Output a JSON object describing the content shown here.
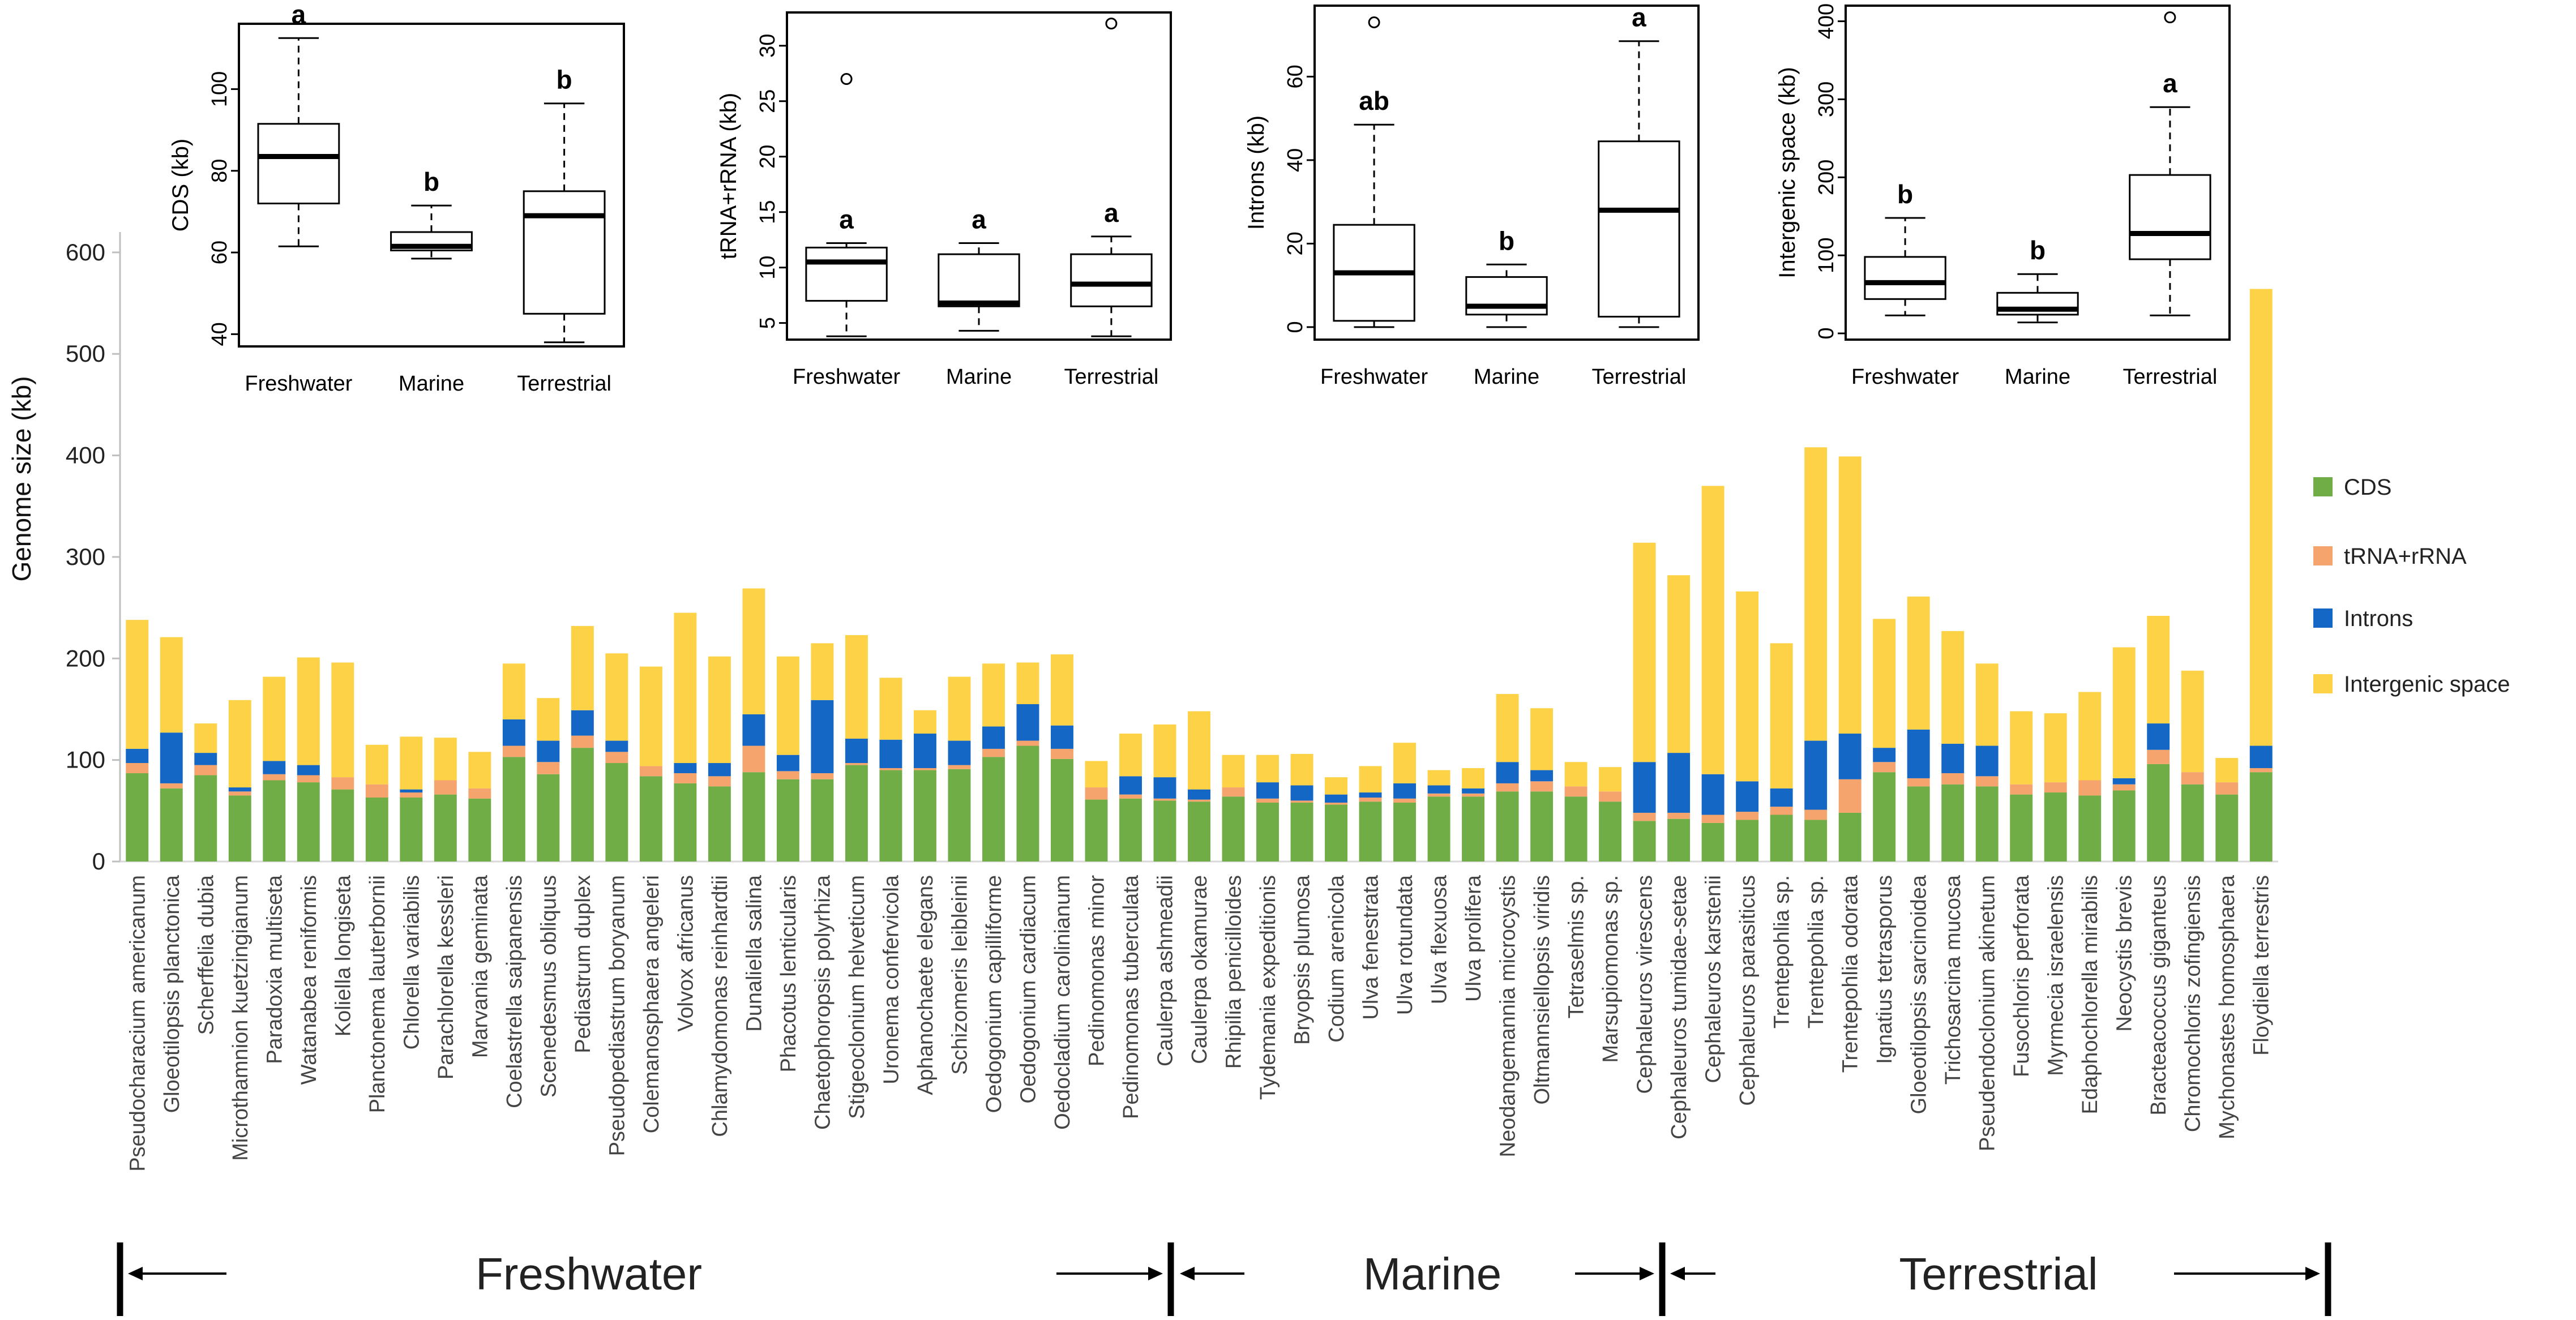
{
  "chart_data": [
    {
      "type": "bar",
      "stacked": true,
      "ylabel": "Genome size (kb)",
      "ylim": [
        0,
        620
      ],
      "yticks": [
        0,
        100,
        200,
        300,
        400,
        500,
        600
      ],
      "legend_position": "right",
      "colors": {
        "CDS": "#70AD47",
        "tRNA+rRNA": "#F4A46C",
        "Introns": "#1467C4",
        "Intergenic space": "#FDD247"
      },
      "categories": [
        "Pseudocharacium americanum",
        "Gloeotilopsis planctonica",
        "Scherffelia dubia",
        "Microthamnion kuetzingianum",
        "Paradoxia multiseta",
        "Watanabea reniformis",
        "Koliella longiseta",
        "Planctonema lauterbornii",
        "Chlorella variabilis",
        "Parachlorella kessleri",
        "Marvania geminata",
        "Coelastrella saipanensis",
        "Scenedesmus obliquus",
        "Pediastrum duplex",
        "Pseudopediastrum boryanum",
        "Colemanosphaera angeleri",
        "Volvox africanus",
        "Chlamydomonas reinhardtii",
        "Dunaliella salina",
        "Phacotus lenticularis",
        "Chaetophoropsis polyrhiza",
        "Stigeoclonium helveticum",
        "Uronema confervicola",
        "Aphanochaete elegans",
        "Schizomeris leibleinii",
        "Oedogonium capilliforme",
        "Oedogonium cardiacum",
        "Oedocladium carolinianum",
        "Pedinomonas minor",
        "Pedinomonas tuberculata",
        "Caulerpa ashmeadii",
        "Caulerpa okamurae",
        "Rhipilia penicilloides",
        "Tydemania expeditionis",
        "Bryopsis plumosa",
        "Codium arenicola",
        "Ulva fenestrata",
        "Ulva rotundata",
        "Ulva flexuosa",
        "Ulva prolifera",
        "Neodangemannia microcystis",
        "Oltmannsiellopsis viridis",
        "Tetraselmis sp.",
        "Marsupiomonas sp.",
        "Cephaleuros virescens",
        "Cephaleuros tumidae-setae",
        "Cephaleuros karstenii",
        "Cephaleuros parasiticus",
        "Trentepohlia sp.",
        "Trentepohlia sp.",
        "Trentepohlia odorata",
        "Ignatius tetrasporus",
        "Gloeotilopsis sarcinoidea",
        "Trichosarcina mucosa",
        "Pseudendoclonium akinetum",
        "Fusochloris perforata",
        "Myrmecia israelensis",
        "Edaphochlorella mirabilis",
        "Neocystis brevis",
        "Bracteacoccus giganteus",
        "Chromochloris zofingiensis",
        "Mychonastes homosphaera",
        "Floydiella terrestris"
      ],
      "series": [
        {
          "name": "CDS",
          "values": [
            87,
            72,
            85,
            65,
            80,
            78,
            71,
            63,
            63,
            66,
            62,
            103,
            86,
            112,
            97,
            84,
            77,
            74,
            88,
            81,
            81,
            95,
            90,
            90,
            91,
            103,
            114,
            101,
            61,
            62,
            60,
            59,
            64,
            58,
            58,
            56,
            59,
            58,
            64,
            64,
            69,
            69,
            64,
            59,
            40,
            42,
            38,
            41,
            46,
            41,
            48,
            88,
            74,
            76,
            74,
            66,
            68,
            65,
            70,
            96,
            76,
            66,
            88
          ]
        },
        {
          "name": "tRNA+rRNA",
          "values": [
            10,
            5,
            10,
            4,
            6,
            7,
            12,
            13,
            5,
            14,
            10,
            11,
            12,
            12,
            11,
            10,
            10,
            10,
            26,
            8,
            6,
            2,
            2,
            2,
            4,
            8,
            5,
            10,
            12,
            4,
            2,
            2,
            9,
            4,
            2,
            2,
            4,
            4,
            3,
            3,
            8,
            10,
            10,
            10,
            8,
            6,
            8,
            8,
            8,
            10,
            33,
            10,
            8,
            11,
            10,
            10,
            10,
            15,
            6,
            14,
            12,
            12,
            4
          ]
        },
        {
          "name": "Introns",
          "values": [
            14,
            50,
            12,
            4,
            13,
            10,
            0,
            0,
            3,
            0,
            0,
            26,
            21,
            25,
            11,
            0,
            10,
            13,
            31,
            16,
            72,
            24,
            28,
            34,
            24,
            22,
            36,
            23,
            0,
            18,
            21,
            10,
            0,
            16,
            15,
            8,
            5,
            15,
            8,
            5,
            21,
            11,
            0,
            0,
            50,
            59,
            40,
            30,
            18,
            68,
            45,
            14,
            48,
            29,
            30,
            0,
            0,
            0,
            6,
            26,
            0,
            0,
            22
          ]
        },
        {
          "name": "Intergenic space",
          "values": [
            127,
            94,
            29,
            86,
            83,
            106,
            113,
            39,
            52,
            42,
            36,
            55,
            42,
            83,
            86,
            98,
            148,
            105,
            124,
            97,
            56,
            102,
            61,
            23,
            63,
            62,
            41,
            70,
            26,
            42,
            52,
            77,
            32,
            27,
            31,
            17,
            26,
            40,
            15,
            20,
            67,
            61,
            24,
            24,
            216,
            175,
            284,
            187,
            143,
            289,
            273,
            127,
            131,
            111,
            81,
            72,
            68,
            87,
            129,
            106,
            100,
            24,
            450
          ]
        }
      ],
      "regions": [
        {
          "label": "Freshwater",
          "first": 0,
          "last": 27
        },
        {
          "label": "Marine",
          "first": 28,
          "last": 43
        },
        {
          "label": "Terrestrial",
          "first": 44,
          "last": 62
        }
      ]
    },
    {
      "type": "box",
      "ylabel": "CDS (kb)",
      "ylim": [
        37,
        116
      ],
      "yticks": [
        40,
        60,
        80,
        100
      ],
      "categories": [
        "Freshwater",
        "Marine",
        "Terrestrial"
      ],
      "boxes": [
        {
          "min": 61.5,
          "q1": 72,
          "median": 83.5,
          "q3": 91.5,
          "max": 112.5,
          "outliers": [],
          "label": "a"
        },
        {
          "min": 58.5,
          "q1": 60.5,
          "median": 61.5,
          "q3": 65,
          "max": 71.5,
          "outliers": [],
          "label": "b"
        },
        {
          "min": 38,
          "q1": 45,
          "median": 69,
          "q3": 75,
          "max": 96.5,
          "outliers": [],
          "label": "b"
        }
      ]
    },
    {
      "type": "box",
      "ylabel": "tRNA+rRNA (kb)",
      "ylim": [
        3.5,
        33
      ],
      "yticks": [
        5,
        10,
        15,
        20,
        25,
        30
      ],
      "categories": [
        "Freshwater",
        "Marine",
        "Terrestrial"
      ],
      "boxes": [
        {
          "min": 3.8,
          "q1": 7,
          "median": 10.5,
          "q3": 11.8,
          "max": 12.2,
          "outliers": [
            27
          ],
          "label": "a"
        },
        {
          "min": 4.3,
          "q1": 6.5,
          "median": 6.8,
          "q3": 11.2,
          "max": 12.2,
          "outliers": [],
          "label": "a"
        },
        {
          "min": 3.8,
          "q1": 6.5,
          "median": 8.5,
          "q3": 11.2,
          "max": 12.8,
          "outliers": [
            32
          ],
          "label": "a"
        }
      ]
    },
    {
      "type": "box",
      "ylabel": "Introns (kb)",
      "ylim": [
        -3,
        77
      ],
      "yticks": [
        0,
        20,
        40,
        60
      ],
      "categories": [
        "Freshwater",
        "Marine",
        "Terrestrial"
      ],
      "boxes": [
        {
          "min": 0,
          "q1": 1.5,
          "median": 13,
          "q3": 24.5,
          "max": 48.5,
          "outliers": [
            73
          ],
          "label": "ab"
        },
        {
          "min": 0,
          "q1": 3,
          "median": 5,
          "q3": 12,
          "max": 15,
          "outliers": [],
          "label": "b"
        },
        {
          "min": 0,
          "q1": 2.5,
          "median": 28,
          "q3": 44.5,
          "max": 68.5,
          "outliers": [],
          "label": "a"
        }
      ]
    },
    {
      "type": "box",
      "ylabel": "Intergenic space (kb)",
      "ylim": [
        -8,
        420
      ],
      "yticks": [
        0,
        100,
        200,
        300,
        400
      ],
      "categories": [
        "Freshwater",
        "Marine",
        "Terrestrial"
      ],
      "boxes": [
        {
          "min": 23,
          "q1": 44,
          "median": 65,
          "q3": 98,
          "max": 148,
          "outliers": [],
          "label": "b"
        },
        {
          "min": 14,
          "q1": 24,
          "median": 31,
          "q3": 52,
          "max": 76,
          "outliers": [],
          "label": "b"
        },
        {
          "min": 23,
          "q1": 95,
          "median": 128,
          "q3": 203,
          "max": 290,
          "outliers": [
            405
          ],
          "label": "a"
        }
      ]
    }
  ]
}
